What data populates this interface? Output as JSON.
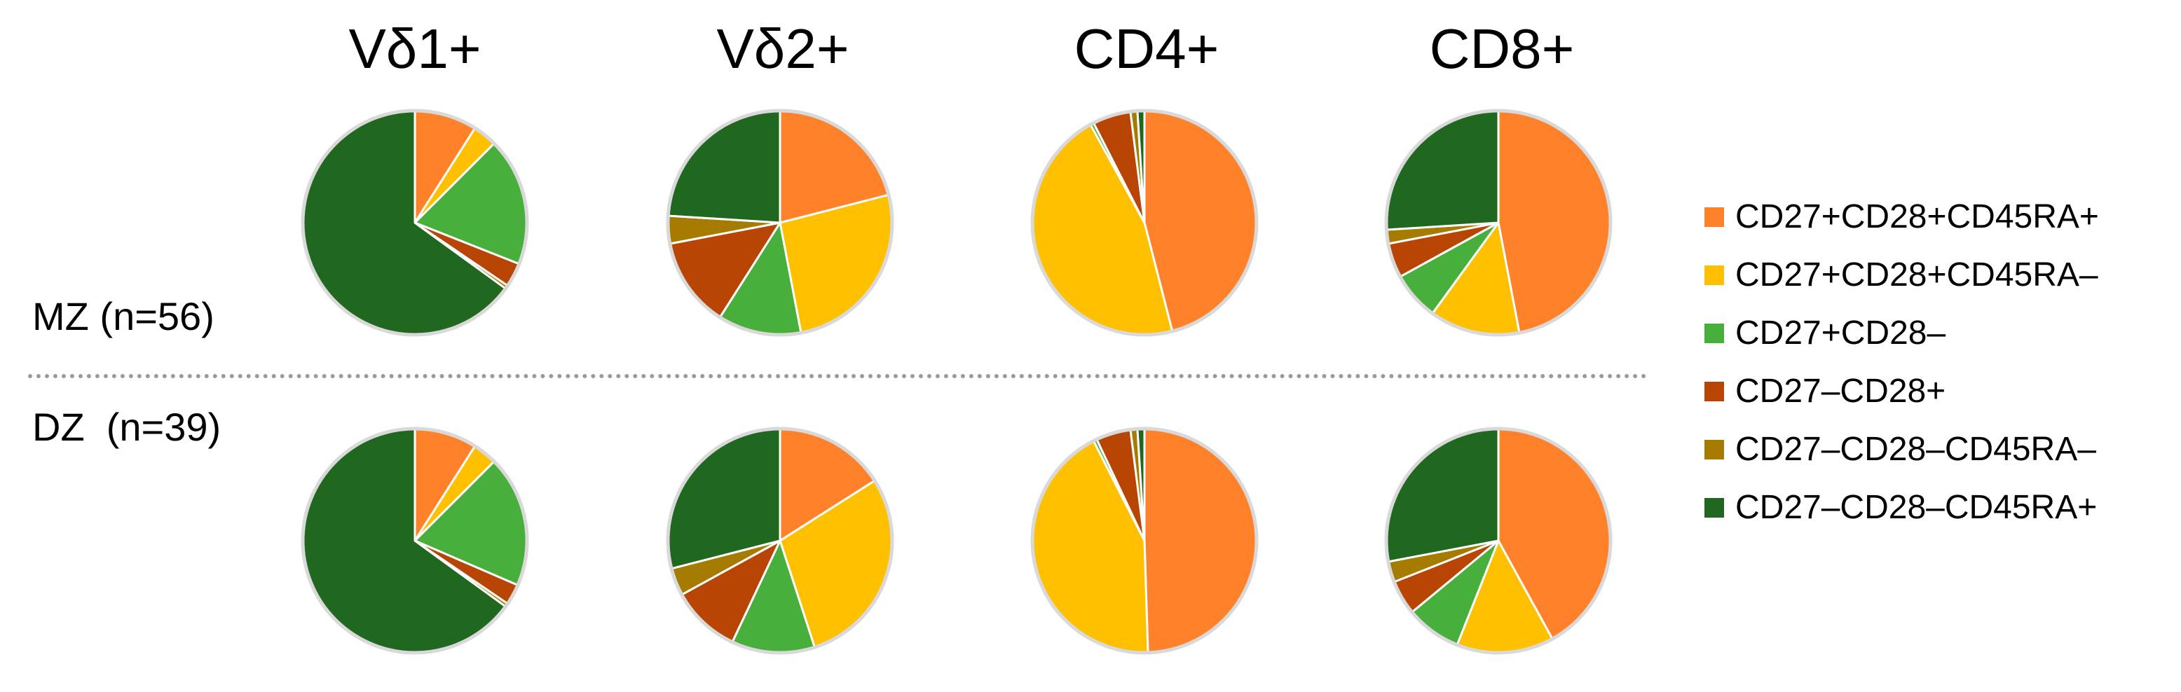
{
  "chart_data": {
    "type": "pie",
    "columns": [
      "Vδ1+",
      "Vδ2+",
      "CD4+",
      "CD8+"
    ],
    "rows": [
      {
        "label": "MZ (n=56)",
        "label_text": "MZ (n=56)"
      },
      {
        "label": "DZ (n=39)",
        "label_text": "DZ  (n=39)"
      }
    ],
    "categories": [
      "CD27+CD28+CD45RA+",
      "CD27+CD28+CD45RA–",
      "CD27+CD28–",
      "CD27–CD28+",
      "CD27–CD28–CD45RA–",
      "CD27–CD28–CD45RA+"
    ],
    "colors": [
      "#FF8129",
      "#FFC000",
      "#48AE3C",
      "#B84503",
      "#A67C00",
      "#206820"
    ],
    "unit": "percent of cells",
    "pies": [
      {
        "row": "MZ (n=56)",
        "column": "Vδ1+",
        "values": [
          9,
          3.5,
          18.5,
          3.5,
          0.5,
          65
        ]
      },
      {
        "row": "MZ (n=56)",
        "column": "Vδ2+",
        "values": [
          21,
          26,
          12,
          13,
          4,
          24
        ]
      },
      {
        "row": "MZ (n=56)",
        "column": "CD4+",
        "values": [
          46,
          46,
          0.5,
          5.5,
          1,
          1
        ]
      },
      {
        "row": "MZ (n=56)",
        "column": "CD8+",
        "values": [
          47,
          13,
          7,
          5,
          2,
          26
        ]
      },
      {
        "row": "DZ (n=39)",
        "column": "Vδ1+",
        "values": [
          9,
          3.5,
          19,
          3,
          0.5,
          65
        ]
      },
      {
        "row": "DZ (n=39)",
        "column": "Vδ2+",
        "values": [
          16,
          29,
          12,
          10,
          4,
          29
        ]
      },
      {
        "row": "DZ (n=39)",
        "column": "CD4+",
        "values": [
          49.5,
          43,
          0.5,
          5,
          1,
          1
        ]
      },
      {
        "row": "DZ (n=39)",
        "column": "CD8+",
        "values": [
          42,
          14,
          8,
          5,
          3,
          28
        ]
      }
    ]
  }
}
